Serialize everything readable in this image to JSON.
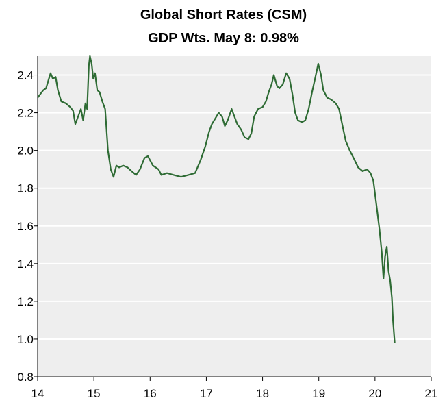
{
  "chart_data": {
    "type": "line",
    "title": "Global Short Rates (CSM)",
    "subtitle": "GDP Wts.   May 8: 0.98%",
    "xlabel": "",
    "ylabel": "",
    "xlim": [
      14,
      21
    ],
    "ylim": [
      0.8,
      2.5
    ],
    "x_ticks": [
      "14",
      "15",
      "16",
      "17",
      "18",
      "19",
      "20",
      "21"
    ],
    "y_ticks": [
      "0.8",
      "1.0",
      "1.2",
      "1.4",
      "1.6",
      "1.8",
      "2.0",
      "2.2",
      "2.4"
    ],
    "grid": true,
    "legend": "none",
    "colors": {
      "line": "#2e6b34",
      "plot_bg": "#eeeeee",
      "grid": "#ffffff",
      "axis": "#000000"
    },
    "series": [
      {
        "name": "",
        "points": [
          [
            14.0,
            2.28
          ],
          [
            14.05,
            2.3
          ],
          [
            14.1,
            2.32
          ],
          [
            14.15,
            2.33
          ],
          [
            14.2,
            2.38
          ],
          [
            14.23,
            2.41
          ],
          [
            14.27,
            2.38
          ],
          [
            14.32,
            2.39
          ],
          [
            14.36,
            2.32
          ],
          [
            14.42,
            2.26
          ],
          [
            14.5,
            2.25
          ],
          [
            14.58,
            2.23
          ],
          [
            14.63,
            2.21
          ],
          [
            14.67,
            2.14
          ],
          [
            14.72,
            2.18
          ],
          [
            14.77,
            2.22
          ],
          [
            14.81,
            2.16
          ],
          [
            14.85,
            2.25
          ],
          [
            14.88,
            2.22
          ],
          [
            14.91,
            2.45
          ],
          [
            14.93,
            2.5
          ],
          [
            14.96,
            2.46
          ],
          [
            14.99,
            2.38
          ],
          [
            15.02,
            2.41
          ],
          [
            15.06,
            2.32
          ],
          [
            15.1,
            2.31
          ],
          [
            15.15,
            2.26
          ],
          [
            15.2,
            2.22
          ],
          [
            15.25,
            2.0
          ],
          [
            15.3,
            1.9
          ],
          [
            15.35,
            1.86
          ],
          [
            15.4,
            1.92
          ],
          [
            15.45,
            1.91
          ],
          [
            15.52,
            1.92
          ],
          [
            15.6,
            1.91
          ],
          [
            15.67,
            1.89
          ],
          [
            15.75,
            1.87
          ],
          [
            15.82,
            1.9
          ],
          [
            15.9,
            1.96
          ],
          [
            15.96,
            1.97
          ],
          [
            16.05,
            1.92
          ],
          [
            16.15,
            1.9
          ],
          [
            16.2,
            1.87
          ],
          [
            16.3,
            1.88
          ],
          [
            16.42,
            1.87
          ],
          [
            16.55,
            1.86
          ],
          [
            16.68,
            1.87
          ],
          [
            16.8,
            1.88
          ],
          [
            16.9,
            1.95
          ],
          [
            16.98,
            2.02
          ],
          [
            17.05,
            2.1
          ],
          [
            17.1,
            2.14
          ],
          [
            17.16,
            2.17
          ],
          [
            17.22,
            2.2
          ],
          [
            17.28,
            2.18
          ],
          [
            17.33,
            2.13
          ],
          [
            17.38,
            2.16
          ],
          [
            17.45,
            2.22
          ],
          [
            17.5,
            2.18
          ],
          [
            17.55,
            2.14
          ],
          [
            17.62,
            2.11
          ],
          [
            17.68,
            2.07
          ],
          [
            17.75,
            2.06
          ],
          [
            17.8,
            2.09
          ],
          [
            17.85,
            2.18
          ],
          [
            17.92,
            2.22
          ],
          [
            18.0,
            2.23
          ],
          [
            18.06,
            2.26
          ],
          [
            18.11,
            2.31
          ],
          [
            18.16,
            2.35
          ],
          [
            18.2,
            2.4
          ],
          [
            18.26,
            2.34
          ],
          [
            18.3,
            2.33
          ],
          [
            18.36,
            2.35
          ],
          [
            18.42,
            2.41
          ],
          [
            18.48,
            2.38
          ],
          [
            18.53,
            2.3
          ],
          [
            18.58,
            2.2
          ],
          [
            18.63,
            2.16
          ],
          [
            18.7,
            2.15
          ],
          [
            18.76,
            2.16
          ],
          [
            18.82,
            2.22
          ],
          [
            18.88,
            2.31
          ],
          [
            18.94,
            2.39
          ],
          [
            18.99,
            2.46
          ],
          [
            19.04,
            2.4
          ],
          [
            19.08,
            2.32
          ],
          [
            19.15,
            2.28
          ],
          [
            19.22,
            2.27
          ],
          [
            19.3,
            2.25
          ],
          [
            19.36,
            2.22
          ],
          [
            19.43,
            2.12
          ],
          [
            19.48,
            2.05
          ],
          [
            19.55,
            2.0
          ],
          [
            19.62,
            1.96
          ],
          [
            19.7,
            1.91
          ],
          [
            19.78,
            1.89
          ],
          [
            19.86,
            1.9
          ],
          [
            19.92,
            1.88
          ],
          [
            19.97,
            1.84
          ],
          [
            20.03,
            1.7
          ],
          [
            20.08,
            1.58
          ],
          [
            20.12,
            1.46
          ],
          [
            20.15,
            1.32
          ],
          [
            20.18,
            1.44
          ],
          [
            20.21,
            1.49
          ],
          [
            20.24,
            1.36
          ],
          [
            20.27,
            1.31
          ],
          [
            20.3,
            1.22
          ],
          [
            20.32,
            1.1
          ],
          [
            20.35,
            0.98
          ]
        ]
      }
    ]
  }
}
